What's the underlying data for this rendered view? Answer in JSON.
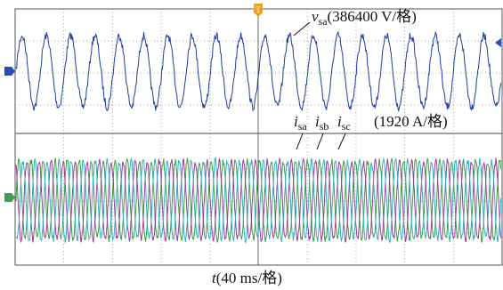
{
  "voltage_label": {
    "symbol": "v",
    "subscript": "sa",
    "scale": "(386400 V/格)"
  },
  "current_labels": [
    {
      "symbol": "i",
      "subscript": "sa"
    },
    {
      "symbol": "i",
      "subscript": "sb"
    },
    {
      "symbol": "i",
      "subscript": "sc"
    }
  ],
  "current_scale": "(1920 A/格)",
  "time_label": {
    "symbol": "t",
    "scale": "(40 ms/格)"
  }
}
